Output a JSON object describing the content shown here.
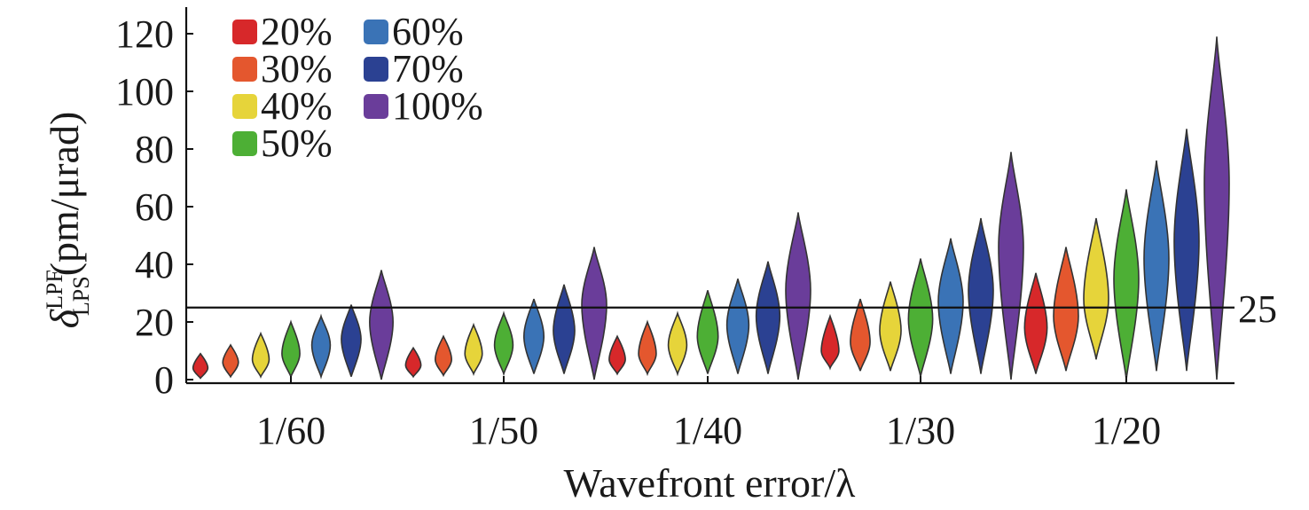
{
  "chart_data": {
    "type": "violin",
    "xlabel": "Wavefront error/λ",
    "ylabel": {
      "symbol": "δ",
      "superscript": "LPF",
      "subscript": "LPS",
      "unit": "(pm/μrad)"
    },
    "ylim": [
      0,
      130
    ],
    "yticks": [
      0,
      20,
      40,
      60,
      80,
      100,
      120
    ],
    "categories": [
      "1/60",
      "1/50",
      "1/40",
      "1/30",
      "1/20"
    ],
    "reference_line": {
      "value": 25,
      "label": "25"
    },
    "legend_placement": "top-left",
    "series": [
      {
        "name": "20%",
        "color": "#d7282a",
        "distributions": [
          {
            "min": 0.5,
            "median": 4,
            "max": 9
          },
          {
            "min": 1,
            "median": 5,
            "max": 11
          },
          {
            "min": 2,
            "median": 7,
            "max": 15
          },
          {
            "min": 4,
            "median": 10,
            "max": 22
          },
          {
            "min": 2,
            "median": 18,
            "max": 37
          }
        ]
      },
      {
        "name": "30%",
        "color": "#e4572e",
        "distributions": [
          {
            "min": 1,
            "median": 6,
            "max": 12
          },
          {
            "min": 1.5,
            "median": 7,
            "max": 15
          },
          {
            "min": 2,
            "median": 9,
            "max": 20
          },
          {
            "min": 3,
            "median": 13,
            "max": 28
          },
          {
            "min": 3,
            "median": 22,
            "max": 46
          }
        ]
      },
      {
        "name": "40%",
        "color": "#e6d43a",
        "distributions": [
          {
            "min": 1,
            "median": 7,
            "max": 16
          },
          {
            "min": 2,
            "median": 9,
            "max": 19
          },
          {
            "min": 2,
            "median": 12,
            "max": 23
          },
          {
            "min": 3,
            "median": 17,
            "max": 34
          },
          {
            "min": 7,
            "median": 28,
            "max": 56
          }
        ]
      },
      {
        "name": "50%",
        "color": "#4daf35",
        "distributions": [
          {
            "min": 1,
            "median": 9,
            "max": 20
          },
          {
            "min": 2,
            "median": 12,
            "max": 23
          },
          {
            "min": 2,
            "median": 15,
            "max": 31
          },
          {
            "min": 1,
            "median": 21,
            "max": 42
          },
          {
            "min": 0,
            "median": 35,
            "max": 66
          }
        ]
      },
      {
        "name": "60%",
        "color": "#3a73b6",
        "distributions": [
          {
            "min": 1,
            "median": 12,
            "max": 22
          },
          {
            "min": 2,
            "median": 15,
            "max": 28
          },
          {
            "min": 2,
            "median": 19,
            "max": 35
          },
          {
            "min": 2,
            "median": 27,
            "max": 49
          },
          {
            "min": 3,
            "median": 42,
            "max": 76
          }
        ]
      },
      {
        "name": "70%",
        "color": "#2b4192",
        "distributions": [
          {
            "min": 1,
            "median": 14,
            "max": 26
          },
          {
            "min": 2,
            "median": 17,
            "max": 33
          },
          {
            "min": 2,
            "median": 22,
            "max": 41
          },
          {
            "min": 2,
            "median": 31,
            "max": 56
          },
          {
            "min": 3,
            "median": 48,
            "max": 87
          }
        ]
      },
      {
        "name": "100%",
        "color": "#6a3d9a",
        "distributions": [
          {
            "min": 0,
            "median": 20,
            "max": 38
          },
          {
            "min": 0,
            "median": 26,
            "max": 46
          },
          {
            "min": 0,
            "median": 31,
            "max": 58
          },
          {
            "min": 0,
            "median": 46,
            "max": 79
          },
          {
            "min": 0,
            "median": 68,
            "max": 119
          }
        ]
      }
    ]
  }
}
